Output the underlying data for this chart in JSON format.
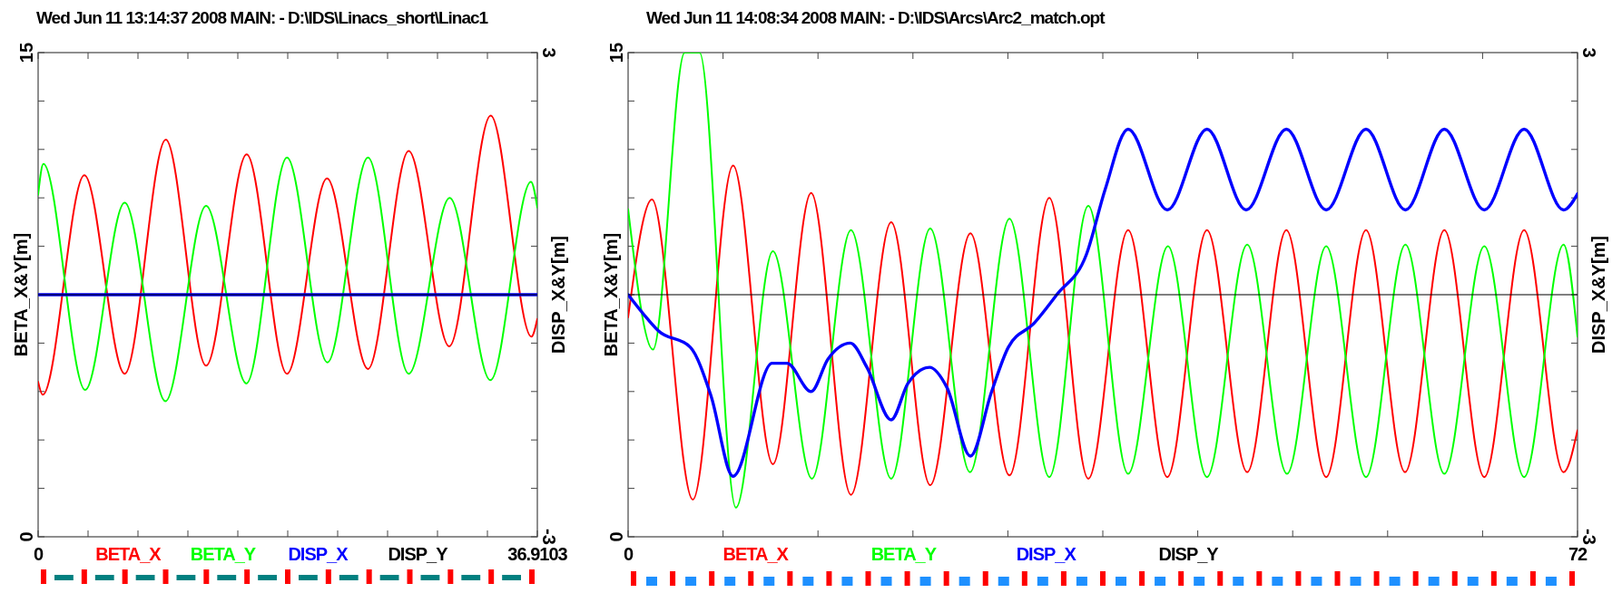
{
  "chart_data": [
    {
      "type": "line",
      "title": "Wed Jun 11 13:14:37 2008    MAIN: - D:\\IDS\\Linacs_short\\Linac1",
      "ylabel": "BETA_X&Y[m]",
      "y2label": "DISP_X&Y[m]",
      "legend": "bottom",
      "xlim": [
        0,
        36.9103
      ],
      "xticks": [
        {
          "value": 0,
          "label": "0"
        },
        {
          "value": 3.69103,
          "label": null
        },
        {
          "value": 7.38206,
          "label": null
        },
        {
          "value": 11.07309,
          "label": null
        },
        {
          "value": 14.76412,
          "label": null
        },
        {
          "value": 18.45515,
          "label": null
        },
        {
          "value": 22.14618,
          "label": null
        },
        {
          "value": 25.83721,
          "label": null
        },
        {
          "value": 29.52824,
          "label": null
        },
        {
          "value": 33.21927,
          "label": null
        },
        {
          "value": 36.9103,
          "label": "36.9103"
        }
      ],
      "ylim": [
        0,
        15
      ],
      "yticks": [
        {
          "value": 0,
          "label": "0"
        },
        {
          "value": 1.5,
          "label": null
        },
        {
          "value": 3,
          "label": null
        },
        {
          "value": 4.5,
          "label": null
        },
        {
          "value": 6,
          "label": null
        },
        {
          "value": 7.5,
          "label": null
        },
        {
          "value": 9,
          "label": null
        },
        {
          "value": 10.5,
          "label": null
        },
        {
          "value": 12,
          "label": null
        },
        {
          "value": 13.5,
          "label": null
        },
        {
          "value": 15,
          "label": "15"
        }
      ],
      "y2lim": [
        -3,
        3
      ],
      "y2ticks": [
        {
          "value": -3,
          "label": "-3"
        },
        {
          "value": -2.4,
          "label": null
        },
        {
          "value": -1.8,
          "label": null
        },
        {
          "value": -1.2,
          "label": null
        },
        {
          "value": -0.6,
          "label": null
        },
        {
          "value": 0,
          "label": null
        },
        {
          "value": 0.6,
          "label": null
        },
        {
          "value": 1.2,
          "label": null
        },
        {
          "value": 1.8,
          "label": null
        },
        {
          "value": 2.4,
          "label": null
        },
        {
          "value": 3,
          "label": "3"
        }
      ],
      "series": [
        {
          "name": "BETA_X",
          "color": "#ff0000",
          "x": [
            0,
            0.34,
            3.42,
            6.4,
            9.44,
            12.42,
            15.42,
            18.4,
            21.36,
            24.39,
            27.4,
            30.4,
            33.46,
            36.47,
            36.91
          ],
          "values": [
            4.8,
            4.4,
            11.2,
            5.05,
            12.3,
            5.3,
            11.85,
            5.05,
            11.1,
            5.2,
            11.95,
            5.9,
            13.05,
            6.2,
            6.75
          ]
        },
        {
          "name": "BETA_Y",
          "color": "#00ff00",
          "x": [
            0,
            0.39,
            3.48,
            6.4,
            9.41,
            12.42,
            15.4,
            18.4,
            21.39,
            24.39,
            27.4,
            30.43,
            33.44,
            36.44,
            36.91
          ],
          "values": [
            10.6,
            11.55,
            4.55,
            10.35,
            4.2,
            10.25,
            4.75,
            11.75,
            5.4,
            11.75,
            5.05,
            10.5,
            4.85,
            11,
            10.2
          ]
        },
        {
          "name": "DISP_X",
          "color": "#0000ff",
          "axis": "y2",
          "x": [
            0,
            36.91
          ],
          "values": [
            0,
            0
          ]
        },
        {
          "name": "DISP_Y",
          "color": "#000000",
          "axis": "y2",
          "x": [
            0,
            36.91
          ],
          "values": [
            0,
            0
          ]
        }
      ]
    },
    {
      "type": "line",
      "title": "Wed Jun 11 14:08:34 2008    MAIN: - D:\\IDS\\Arcs\\Arc2_match.opt",
      "ylabel": "BETA_X&Y[m]",
      "y2label": "DISP_X&Y[m]",
      "legend": "bottom",
      "xlim": [
        0,
        72
      ],
      "xticks": [
        {
          "value": 0,
          "label": "0"
        },
        {
          "value": 7.2,
          "label": null
        },
        {
          "value": 14.4,
          "label": null
        },
        {
          "value": 21.6,
          "label": null
        },
        {
          "value": 28.8,
          "label": null
        },
        {
          "value": 36,
          "label": null
        },
        {
          "value": 43.2,
          "label": null
        },
        {
          "value": 50.4,
          "label": null
        },
        {
          "value": 57.6,
          "label": null
        },
        {
          "value": 64.8,
          "label": null
        },
        {
          "value": 72,
          "label": "72"
        }
      ],
      "ylim": [
        0,
        15
      ],
      "yticks": [
        {
          "value": 0,
          "label": "0"
        },
        {
          "value": 1.5,
          "label": null
        },
        {
          "value": 3,
          "label": null
        },
        {
          "value": 4.5,
          "label": null
        },
        {
          "value": 6,
          "label": null
        },
        {
          "value": 7.5,
          "label": null
        },
        {
          "value": 9,
          "label": null
        },
        {
          "value": 10.5,
          "label": null
        },
        {
          "value": 12,
          "label": null
        },
        {
          "value": 13.5,
          "label": null
        },
        {
          "value": 15,
          "label": "15"
        }
      ],
      "y2lim": [
        -3,
        3
      ],
      "y2ticks": [
        {
          "value": -3,
          "label": "-3"
        },
        {
          "value": -2.4,
          "label": null
        },
        {
          "value": -1.8,
          "label": null
        },
        {
          "value": -1.2,
          "label": null
        },
        {
          "value": -0.6,
          "label": null
        },
        {
          "value": 0,
          "label": null
        },
        {
          "value": 0.6,
          "label": null
        },
        {
          "value": 1.2,
          "label": null
        },
        {
          "value": 1.8,
          "label": null
        },
        {
          "value": 2.4,
          "label": null
        },
        {
          "value": 3,
          "label": "3"
        }
      ],
      "series": [
        {
          "name": "BETA_X",
          "color": "#ff0000",
          "x": [
            0,
            1.81,
            4.91,
            7.96,
            10.98,
            13.88,
            16.9,
            19.95,
            22.91,
            25.96,
            28.92,
            31.94,
            34.9,
            37.92,
            40.89,
            43.9,
            46.95,
            49.92,
            52.94,
            55.96,
            58.92,
            61.9,
            64.93,
            67.95,
            70.94,
            72
          ],
          "values": [
            6.8,
            10.45,
            1.15,
            11.5,
            2.25,
            10.65,
            1.3,
            9.75,
            1.6,
            9.4,
            1.9,
            10.5,
            1.8,
            9.5,
            1.85,
            9.5,
            2,
            9.5,
            1.85,
            9.5,
            2,
            9.5,
            1.85,
            9.5,
            2,
            3.3
          ]
        },
        {
          "name": "BETA_Y",
          "color": "#00ff00",
          "x": [
            0,
            1.89,
            4.29,
            5.42,
            8.18,
            10.98,
            13.94,
            16.9,
            19.95,
            22.91,
            25.93,
            28.92,
            31.94,
            34.9,
            37.92,
            40.94,
            43.9,
            46.95,
            49.97,
            52.94,
            55.96,
            58.95,
            61.9,
            64.93,
            67.95,
            70.94,
            72
          ],
          "values": [
            10.15,
            5.8,
            15,
            15,
            0.9,
            8.85,
            1.8,
            9.5,
            1.8,
            9.55,
            2,
            9.85,
            1.85,
            10.25,
            1.95,
            9,
            1.85,
            9.05,
            1.95,
            9,
            1.85,
            9.05,
            1.95,
            9,
            1.85,
            9.05,
            6.2
          ]
        },
        {
          "name": "DISP_X",
          "color": "#0000ff",
          "axis": "y2",
          "x": [
            0,
            1.47,
            2.31,
            4.71,
            6.28,
            7.96,
            10.92,
            12.05,
            13.88,
            15.15,
            16.85,
            18.11,
            19.95,
            21.22,
            22.86,
            24.18,
            25.96,
            27.57,
            28.84,
            30.81,
            32.51,
            34.76,
            36.17,
            37.92,
            40.89,
            43.9,
            46.87,
            49.92,
            52.94,
            55.96,
            58.95,
            61.9,
            64.93,
            67.95,
            70.94,
            72
          ],
          "values": [
            0,
            -0.3,
            -0.45,
            -0.65,
            -1.25,
            -2.25,
            -0.85,
            -0.85,
            -1.2,
            -0.8,
            -0.6,
            -0.9,
            -1.55,
            -1.1,
            -0.9,
            -1.15,
            -2,
            -1.2,
            -0.65,
            -0.35,
            0,
            0.5,
            1.3,
            2.05,
            1.05,
            2.05,
            1.05,
            2.05,
            1.05,
            2.05,
            1.05,
            2.05,
            1.05,
            2.05,
            1.05,
            1.25
          ]
        },
        {
          "name": "DISP_Y",
          "color": "#000000",
          "axis": "y2",
          "x": [
            0,
            72
          ],
          "values": [
            0,
            0
          ]
        }
      ]
    }
  ]
}
